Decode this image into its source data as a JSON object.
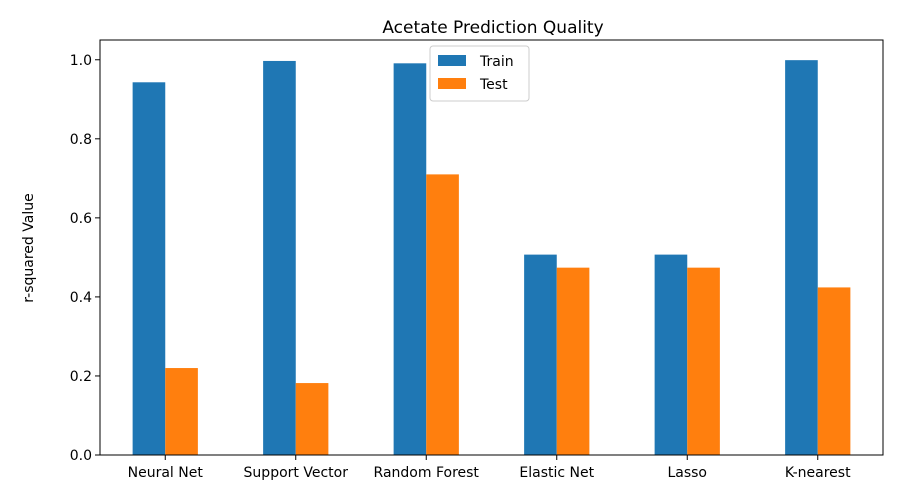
{
  "chart_data": {
    "type": "bar",
    "title": "Acetate Prediction Quality",
    "xlabel": "",
    "ylabel": "r-squared Value",
    "categories": [
      "Neural Net",
      "Support Vector",
      "Random Forest",
      "Elastic Net",
      "Lasso",
      "K-nearest"
    ],
    "series": [
      {
        "name": "Train",
        "color": "#1f77b4",
        "values": [
          0.943,
          0.997,
          0.991,
          0.507,
          0.507,
          0.999
        ]
      },
      {
        "name": "Test",
        "color": "#ff7f0e",
        "values": [
          0.22,
          0.182,
          0.71,
          0.474,
          0.474,
          0.424
        ]
      }
    ],
    "ylim": [
      0,
      1.05
    ],
    "yticks": [
      "0.0",
      "0.2",
      "0.4",
      "0.6",
      "0.8",
      "1.0"
    ],
    "grid": false,
    "legend_position": "top-center"
  }
}
